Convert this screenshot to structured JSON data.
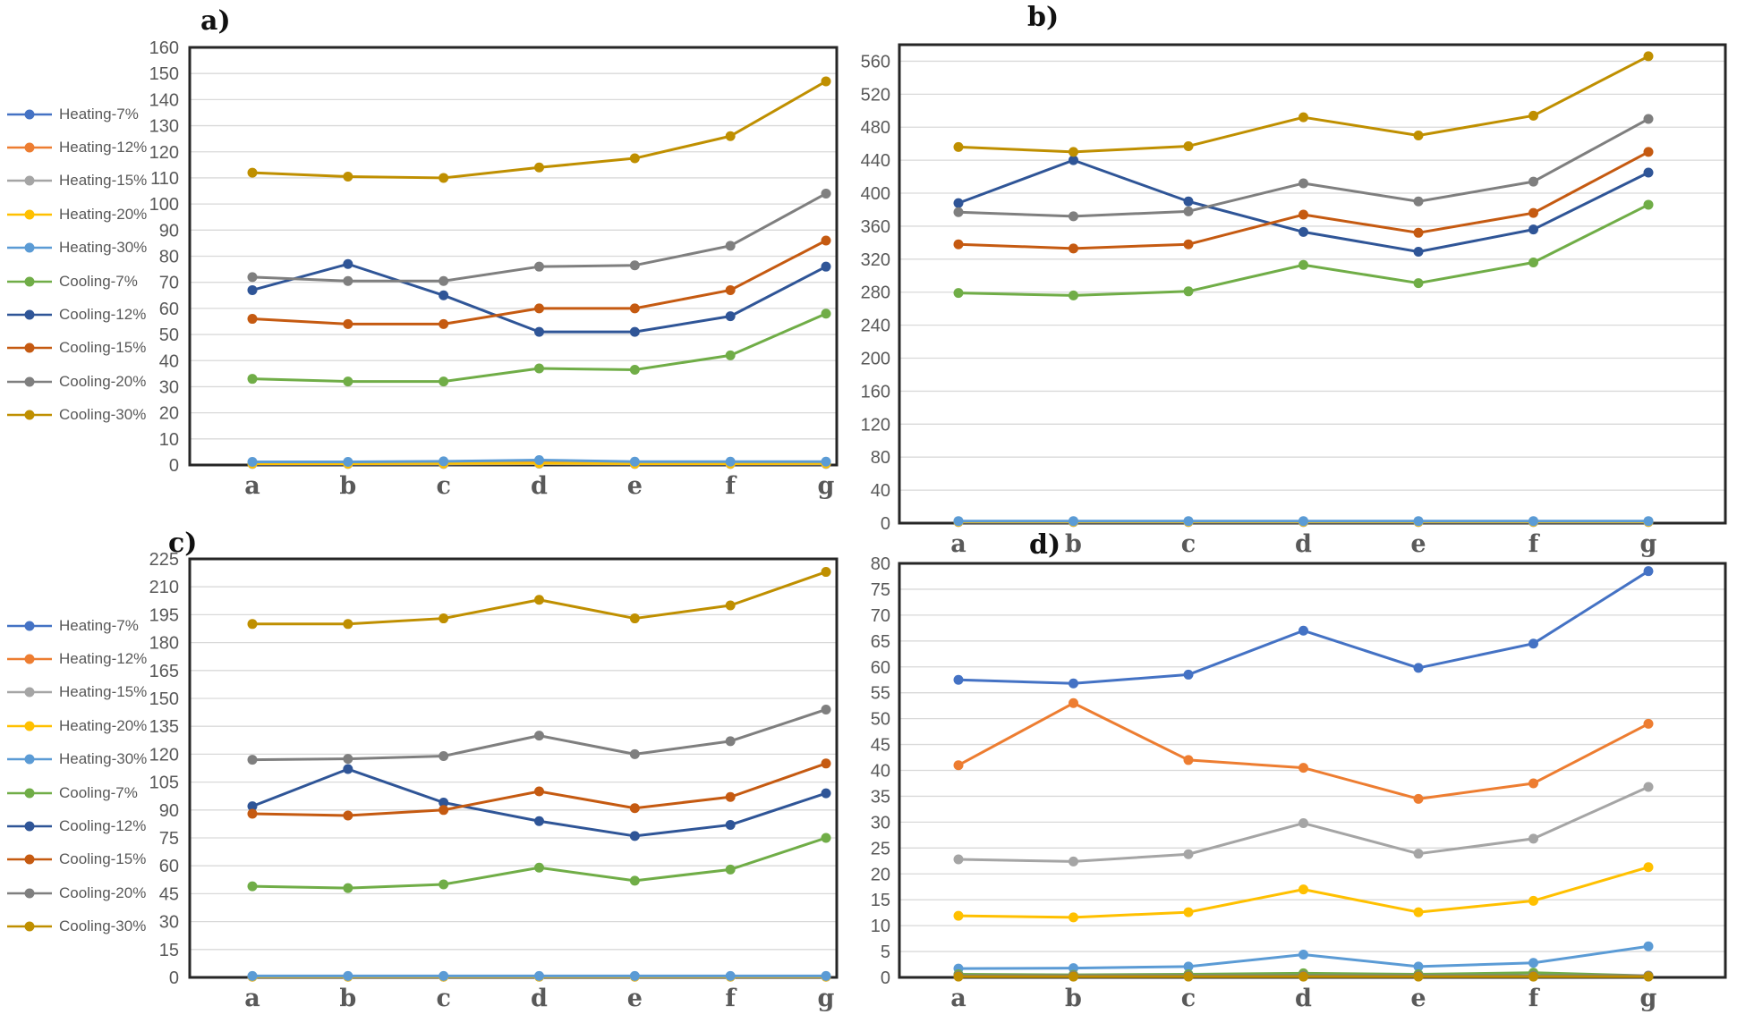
{
  "style": {
    "grid_color": "#d9d9d9",
    "border_color": "#262626",
    "tick_text_color": "#595959",
    "letter_text_color": "#595959"
  },
  "figure": {
    "legend_note": "two identical legends, one beside chart a and one beside chart c"
  },
  "chart_data": [
    {
      "id": "a",
      "type": "line",
      "title": "a)",
      "categories": [
        "a",
        "b",
        "c",
        "d",
        "e",
        "f",
        "g"
      ],
      "ylim": [
        0,
        160
      ],
      "ytick": 10,
      "grid": true,
      "legend_position": "left",
      "series": [
        {
          "name": "Heating-7%",
          "color": "#4472C4",
          "values": [
            0.5,
            0.5,
            0.5,
            0.6,
            0.5,
            0.5,
            0.5
          ]
        },
        {
          "name": "Heating-12%",
          "color": "#ED7D31",
          "values": [
            0.6,
            0.8,
            1.0,
            1.2,
            0.8,
            0.8,
            0.8
          ]
        },
        {
          "name": "Heating-15%",
          "color": "#A5A5A5",
          "values": [
            0.4,
            0.4,
            0.4,
            0.5,
            0.4,
            0.4,
            0.4
          ]
        },
        {
          "name": "Heating-20%",
          "color": "#FFC000",
          "values": [
            0.5,
            0.5,
            0.6,
            0.7,
            0.5,
            0.5,
            0.6
          ]
        },
        {
          "name": "Heating-30%",
          "color": "#5B9BD5",
          "values": [
            1.2,
            1.2,
            1.4,
            1.9,
            1.3,
            1.3,
            1.3
          ]
        },
        {
          "name": "Cooling-7%",
          "color": "#70AD47",
          "values": [
            33,
            32,
            32,
            37,
            36.5,
            42,
            58
          ]
        },
        {
          "name": "Cooling-12%",
          "color": "#2F5597",
          "values": [
            67,
            77,
            65,
            51,
            51,
            57,
            76
          ]
        },
        {
          "name": "Cooling-15%",
          "color": "#C55A11",
          "values": [
            56,
            54,
            54,
            60,
            60,
            67,
            86
          ]
        },
        {
          "name": "Cooling-20%",
          "color": "#7F7F7F",
          "values": [
            72,
            70.5,
            70.5,
            76,
            76.5,
            84,
            104
          ]
        },
        {
          "name": "Cooling-30%",
          "color": "#BF8F00",
          "values": [
            112,
            110.5,
            110,
            114,
            117.5,
            126,
            147
          ]
        }
      ]
    },
    {
      "id": "b",
      "type": "line",
      "title": "b)",
      "categories": [
        "a",
        "b",
        "c",
        "d",
        "e",
        "f",
        "g"
      ],
      "ylim": [
        0,
        580
      ],
      "ytick": 40,
      "grid": true,
      "legend_position": "none",
      "series": [
        {
          "name": "Heating-7%",
          "color": "#4472C4",
          "values": [
            1.5,
            1.5,
            1.5,
            1.5,
            1.5,
            1.5,
            1.5
          ]
        },
        {
          "name": "Heating-12%",
          "color": "#ED7D31",
          "values": [
            2,
            2,
            2,
            2,
            2,
            2,
            2
          ]
        },
        {
          "name": "Heating-15%",
          "color": "#A5A5A5",
          "values": [
            1.2,
            1.2,
            1.2,
            1.2,
            1.2,
            1.2,
            1.2
          ]
        },
        {
          "name": "Heating-20%",
          "color": "#FFC000",
          "values": [
            1.6,
            1.6,
            1.6,
            1.6,
            1.6,
            1.6,
            1.6
          ]
        },
        {
          "name": "Heating-30%",
          "color": "#5B9BD5",
          "values": [
            2.5,
            2.5,
            2.5,
            2.5,
            2.5,
            2.5,
            2.5
          ]
        },
        {
          "name": "Cooling-7%",
          "color": "#70AD47",
          "values": [
            279,
            276,
            281,
            313,
            291,
            316,
            386
          ]
        },
        {
          "name": "Cooling-12%",
          "color": "#2F5597",
          "values": [
            388,
            440,
            390,
            353,
            329,
            356,
            425
          ]
        },
        {
          "name": "Cooling-15%",
          "color": "#C55A11",
          "values": [
            338,
            333,
            338,
            374,
            352,
            376,
            450
          ]
        },
        {
          "name": "Cooling-20%",
          "color": "#7F7F7F",
          "values": [
            377,
            372,
            378,
            412,
            390,
            414,
            490
          ]
        },
        {
          "name": "Cooling-30%",
          "color": "#BF8F00",
          "values": [
            456,
            450,
            457,
            492,
            470,
            494,
            566
          ]
        }
      ]
    },
    {
      "id": "c",
      "type": "line",
      "title": "c)",
      "categories": [
        "a",
        "b",
        "c",
        "d",
        "e",
        "f",
        "g"
      ],
      "ylim": [
        0,
        225
      ],
      "ytick": 15,
      "grid": true,
      "legend_position": "left",
      "series": [
        {
          "name": "Heating-7%",
          "color": "#4472C4",
          "values": [
            0.4,
            0.4,
            0.4,
            0.4,
            0.4,
            0.4,
            0.4
          ]
        },
        {
          "name": "Heating-12%",
          "color": "#ED7D31",
          "values": [
            0.5,
            0.5,
            0.5,
            0.5,
            0.5,
            0.5,
            0.5
          ]
        },
        {
          "name": "Heating-15%",
          "color": "#A5A5A5",
          "values": [
            0.35,
            0.35,
            0.35,
            0.35,
            0.35,
            0.35,
            0.35
          ]
        },
        {
          "name": "Heating-20%",
          "color": "#FFC000",
          "values": [
            0.45,
            0.45,
            0.45,
            0.45,
            0.45,
            0.45,
            0.45
          ]
        },
        {
          "name": "Heating-30%",
          "color": "#5B9BD5",
          "values": [
            0.8,
            0.8,
            0.8,
            0.8,
            0.8,
            0.8,
            0.8
          ]
        },
        {
          "name": "Cooling-7%",
          "color": "#70AD47",
          "values": [
            49,
            48,
            50,
            59,
            52,
            58,
            75
          ]
        },
        {
          "name": "Cooling-12%",
          "color": "#2F5597",
          "values": [
            92,
            112,
            94,
            84,
            76,
            82,
            99
          ]
        },
        {
          "name": "Cooling-15%",
          "color": "#C55A11",
          "values": [
            88,
            87,
            90,
            100,
            91,
            97,
            115
          ]
        },
        {
          "name": "Cooling-20%",
          "color": "#7F7F7F",
          "values": [
            117,
            117.5,
            119,
            130,
            120,
            127,
            144
          ]
        },
        {
          "name": "Cooling-30%",
          "color": "#BF8F00",
          "values": [
            190,
            190,
            193,
            203,
            193,
            200,
            218
          ]
        }
      ]
    },
    {
      "id": "d",
      "type": "line",
      "title": "d)",
      "categories": [
        "a",
        "b",
        "c",
        "d",
        "e",
        "f",
        "g"
      ],
      "ylim": [
        0,
        80
      ],
      "ytick": 5,
      "grid": true,
      "legend_position": "none",
      "series": [
        {
          "name": "Heating-7%",
          "color": "#4472C4",
          "values": [
            57.5,
            56.8,
            58.5,
            67,
            59.8,
            64.5,
            78.5
          ]
        },
        {
          "name": "Heating-12%",
          "color": "#ED7D31",
          "values": [
            41,
            53,
            42,
            40.5,
            34.5,
            37.5,
            49
          ]
        },
        {
          "name": "Heating-15%",
          "color": "#A5A5A5",
          "values": [
            22.8,
            22.4,
            23.8,
            29.8,
            23.9,
            26.8,
            36.8
          ]
        },
        {
          "name": "Heating-20%",
          "color": "#FFC000",
          "values": [
            11.9,
            11.6,
            12.6,
            17,
            12.6,
            14.8,
            21.3
          ]
        },
        {
          "name": "Heating-30%",
          "color": "#5B9BD5",
          "values": [
            1.7,
            1.8,
            2.1,
            4.4,
            2.1,
            2.8,
            6
          ]
        },
        {
          "name": "Cooling-7%",
          "color": "#70AD47",
          "values": [
            0.6,
            0.5,
            0.6,
            0.8,
            0.6,
            0.9,
            0.3
          ]
        },
        {
          "name": "Cooling-12%",
          "color": "#2F5597",
          "values": [
            0.2,
            0.2,
            0.2,
            0.2,
            0.2,
            0.2,
            0.2
          ]
        },
        {
          "name": "Cooling-15%",
          "color": "#C55A11",
          "values": [
            0.25,
            0.25,
            0.25,
            0.25,
            0.25,
            0.25,
            0.25
          ]
        },
        {
          "name": "Cooling-20%",
          "color": "#7F7F7F",
          "values": [
            0.35,
            0.35,
            0.35,
            0.35,
            0.35,
            0.35,
            0.35
          ]
        },
        {
          "name": "Cooling-30%",
          "color": "#BF8F00",
          "values": [
            0.15,
            0.15,
            0.15,
            0.15,
            0.15,
            0.15,
            0.15
          ]
        }
      ]
    }
  ]
}
